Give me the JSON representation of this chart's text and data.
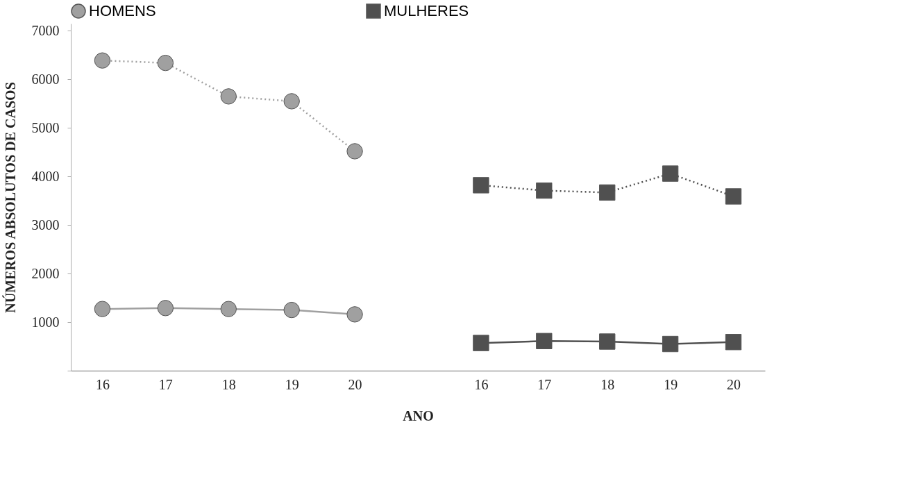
{
  "chart_data": {
    "type": "line",
    "xlabel": "ANO",
    "ylabel": "NÚMEROS ABSOLUTOS DE CASOS",
    "categories": [
      "16",
      "17",
      "18",
      "19",
      "20",
      null,
      "16",
      "17",
      "18",
      "19",
      "20"
    ],
    "series": [
      {
        "name": "HOMENS",
        "color": "#a0a0a0",
        "marker": "circle",
        "line_style": "dotted",
        "values": [
          6390,
          6340,
          5650,
          5550,
          4520,
          null,
          null,
          null,
          null,
          null,
          null
        ]
      },
      {
        "color": "#a0a0a0",
        "marker": "circle",
        "line_style": "solid",
        "values": [
          1270,
          1290,
          1270,
          1250,
          1160,
          null,
          null,
          null,
          null,
          null,
          null
        ]
      },
      {
        "name": "MULHERES",
        "color": "#505050",
        "marker": "square",
        "line_style": "dotted",
        "values": [
          null,
          null,
          null,
          null,
          null,
          null,
          3820,
          3710,
          3670,
          4060,
          3590
        ]
      },
      {
        "color": "#505050",
        "marker": "square",
        "line_style": "solid",
        "values": [
          null,
          null,
          null,
          null,
          null,
          null,
          570,
          610,
          600,
          550,
          590
        ]
      }
    ],
    "ylim": [
      0,
      7150
    ],
    "yticks": [
      {
        "value": 0,
        "label": null
      },
      1000,
      2000,
      3000,
      4000,
      5000,
      6000,
      7000
    ],
    "grid": false,
    "legend": "top"
  }
}
